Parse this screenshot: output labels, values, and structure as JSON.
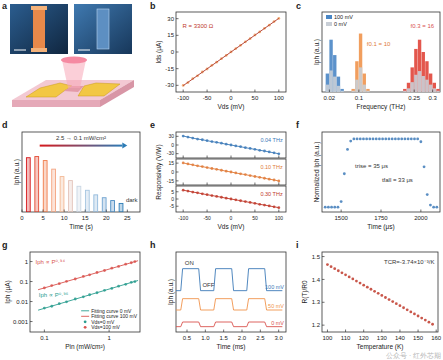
{
  "diagram": {
    "label": "a"
  },
  "watermark": "公众号 · 红外芯期",
  "chart_data": [
    {
      "title": "b",
      "type": "line",
      "x_label": "Vds (mV)",
      "y_label": "Ids (μA)",
      "x": [
        -100,
        -90,
        -80,
        -70,
        -60,
        -50,
        -40,
        -30,
        -20,
        -10,
        0,
        10,
        20,
        30,
        40,
        50,
        60,
        70,
        80,
        90,
        100
      ],
      "xlim": [
        -115,
        115
      ],
      "xticks": [
        -100,
        -50,
        0,
        50,
        100
      ],
      "ylim": [
        -36,
        36
      ],
      "yticks": [
        -30,
        -15,
        0,
        15,
        30
      ],
      "annotations": [
        "R = 3300 Ω"
      ],
      "series": [
        {
          "type": "scatter",
          "color": "#f0a060",
          "marker": "circle",
          "values": [
            -30.1,
            -27.5,
            -24.0,
            -21.4,
            -18.0,
            -15.3,
            -12.0,
            -9.2,
            -6.0,
            -3.1,
            0.1,
            3.1,
            6.0,
            9.2,
            12.0,
            15.3,
            18.1,
            21.3,
            24.1,
            27.4,
            30.2
          ]
        },
        {
          "type": "line",
          "color": "#b03a2e",
          "line_style": "solid",
          "x": [
            -100,
            100
          ],
          "values": [
            -30.3,
            30.3
          ]
        }
      ]
    },
    {
      "title": "c",
      "type": "histogram",
      "x_label": "Frequency (THz)",
      "y_label": "Iph (a.u.)",
      "bins": [
        0,
        0.01,
        0.02,
        0.03,
        0.04,
        0.05,
        0.06,
        0.07,
        0.08,
        0.09,
        0.1,
        0.11,
        0.12,
        0.13,
        0.14,
        0.15,
        0.16,
        0.17,
        0.18,
        0.19,
        0.2,
        0.21,
        0.22,
        0.23,
        0.24,
        0.25,
        0.26,
        0.27,
        0.28,
        0.29,
        0.3,
        0.31,
        0.32
      ],
      "xlim": [
        0,
        0.32
      ],
      "xticks": [
        0.02,
        0.1,
        0.25,
        0.3
      ],
      "ylim": [
        0,
        1.3
      ],
      "tick_labels": "x",
      "legend": "upper left",
      "annotations": [
        "f0.1 = 10",
        "f0.3 = 16"
      ],
      "series": [
        {
          "name": "100 mV",
          "colors": [
            "#4a86c5",
            "#4a86c5",
            "#4a86c5",
            "#4a86c5",
            "#4a86c5",
            "#4a86c5",
            "#4a86c5",
            "#4a86c5",
            "#f0944d",
            "#f0944d",
            "#f0944d",
            "#f0944d",
            "#f0944d",
            "#f0944d",
            "#f0944d",
            "#f0944d",
            "#e0453a",
            "#e0453a",
            "#e0453a",
            "#e0453a",
            "#e0453a",
            "#e0453a",
            "#e0453a",
            "#e0453a",
            "#e0453a",
            "#e0453a",
            "#e0453a",
            "#e0453a",
            "#e0453a",
            "#e0453a",
            "#e0453a",
            "#e0453a"
          ],
          "values": [
            0,
            0.3,
            0.85,
            0.6,
            0.25,
            0.05,
            0,
            0,
            0.05,
            0.5,
            0.95,
            0.3,
            0.05,
            0,
            0,
            0,
            0,
            0,
            0,
            0,
            0,
            0,
            0.05,
            0.15,
            0.4,
            0.7,
            0.85,
            0.65,
            0.5,
            0.3,
            0.15,
            0.05
          ]
        },
        {
          "name": "0 mV",
          "color": "#c8ced6",
          "values": [
            0,
            0.12,
            0.35,
            0.25,
            0.1,
            0.02,
            0,
            0,
            0.02,
            0.2,
            0.4,
            0.12,
            0.02,
            0,
            0,
            0,
            0,
            0,
            0,
            0,
            0,
            0,
            0.02,
            0.06,
            0.16,
            0.28,
            0.34,
            0.26,
            0.2,
            0.12,
            0.06,
            0.02
          ]
        }
      ]
    },
    {
      "title": "d",
      "type": "bar",
      "x_label": "Time (s)",
      "y_label": "Iph (a.u.)",
      "x": [
        1.5,
        3.5,
        5.5,
        7.5,
        9.5,
        11.5,
        13.5,
        15.5,
        17.5,
        19.5,
        21.5,
        23.5
      ],
      "values": [
        0.95,
        0.97,
        0.9,
        0.75,
        0.62,
        0.55,
        0.45,
        0.38,
        0.3,
        0.25,
        0.2,
        0.15
      ],
      "colors": [
        "#d7191c",
        "#e34a33",
        "#f07c4a",
        "#f4a582",
        "#f3b894",
        "#e3c4bb",
        "#c9d6e3",
        "#a6c5e0",
        "#92b9dc",
        "#6fa3d0",
        "#4b8bc2",
        "#2c7bb6"
      ],
      "xlim": [
        0,
        28
      ],
      "xticks": [
        0,
        5,
        10,
        15,
        20,
        25
      ],
      "ylim": [
        0,
        1.4
      ],
      "tick_labels": "x",
      "annotations": [
        "2.5 → 0.1 mW/cm²",
        "dark"
      ]
    },
    {
      "title": "e",
      "type": "line",
      "tick_labels": "y",
      "x": [
        -100,
        -90,
        -80,
        -70,
        -60,
        -50,
        -40,
        -30,
        -20,
        -10,
        0,
        10,
        20,
        30,
        40,
        50,
        60,
        70,
        80,
        90,
        100
      ],
      "xlim": [
        -115,
        115
      ],
      "xticks": [
        -100,
        -50,
        0,
        50,
        100
      ],
      "ylim": [
        -45,
        45
      ],
      "yticks": [
        -30,
        0,
        30
      ],
      "annotations": [
        "0.04 THz"
      ],
      "series": [
        {
          "color": "#3d7ab8",
          "marker": "circle",
          "line_style": "solid",
          "values": [
            31,
            27.5,
            24,
            20.6,
            18.2,
            15,
            11.7,
            9.1,
            6.2,
            2.8,
            0,
            -3.1,
            -5.9,
            -9.2,
            -12,
            -15.1,
            -18.3,
            -20.8,
            -24.1,
            -27.2,
            -30.5
          ]
        }
      ]
    },
    {
      "type": "line",
      "y_label": "Responsivity (V/W)",
      "tick_labels": "y",
      "x": [
        -100,
        -90,
        -80,
        -70,
        -60,
        -50,
        -40,
        -30,
        -20,
        -10,
        0,
        10,
        20,
        30,
        40,
        50,
        60,
        70,
        80,
        90,
        100
      ],
      "xlim": [
        -115,
        115
      ],
      "xticks": [
        -100,
        -50,
        0,
        50,
        100
      ],
      "ylim": [
        -22,
        22
      ],
      "yticks": [
        -15,
        0,
        15
      ],
      "annotations": [
        "0.10 THz"
      ],
      "series": [
        {
          "color": "#e07b39",
          "marker": "circle",
          "line_style": "solid",
          "values": [
            15.4,
            13.6,
            12.1,
            10.4,
            9.1,
            7.5,
            5.9,
            4.6,
            3.0,
            1.4,
            0,
            -1.6,
            -3.1,
            -4.4,
            -6.0,
            -7.6,
            -9.0,
            -10.6,
            -12.1,
            -13.5,
            -15.2
          ]
        }
      ]
    },
    {
      "type": "line",
      "x_label": "Vds (mV)",
      "x": [
        -100,
        -90,
        -80,
        -70,
        -60,
        -50,
        -40,
        -30,
        -20,
        -10,
        0,
        10,
        20,
        30,
        40,
        50,
        60,
        70,
        80,
        90,
        100
      ],
      "xlim": [
        -115,
        115
      ],
      "xticks": [
        -100,
        -50,
        0,
        50,
        100
      ],
      "ylim": [
        -9,
        9
      ],
      "yticks": [
        -5,
        0,
        5
      ],
      "annotations": [
        "0.30 THz"
      ],
      "series": [
        {
          "color": "#c0392b",
          "marker": "circle",
          "line_style": "solid",
          "values": [
            6.1,
            5.5,
            4.8,
            4.3,
            3.6,
            3.0,
            2.4,
            1.8,
            1.2,
            0.6,
            0,
            -0.6,
            -1.2,
            -1.8,
            -2.4,
            -3.0,
            -3.7,
            -4.2,
            -4.8,
            -5.4,
            -6.0
          ]
        }
      ]
    },
    {
      "title": "f",
      "type": "line",
      "x_label": "Time (μs)",
      "y_label": "Normalized Iph (a.u.)",
      "x": [
        1400,
        1420,
        1440,
        1460,
        1480,
        1500,
        1520,
        1540,
        1560,
        1580,
        1600,
        1620,
        1640,
        1660,
        1680,
        1700,
        1720,
        1740,
        1760,
        1780,
        1800,
        1820,
        1840,
        1860,
        1880,
        1900,
        1920,
        1940,
        1960,
        1980,
        2000,
        2020,
        2040,
        2060,
        2080,
        2100
      ],
      "xlim": [
        1380,
        2120
      ],
      "xticks": [
        1500,
        1750,
        2000
      ],
      "ylim": [
        -0.05,
        1.1
      ],
      "tick_labels": "x",
      "annotations": [
        "trise = 35 μs",
        "tfall = 33 μs"
      ],
      "series": [
        {
          "type": "scatter",
          "color": "#3d7ab8",
          "marker": "circle",
          "values": [
            0.02,
            0.02,
            0.02,
            0.02,
            0.02,
            0.1,
            0.5,
            0.85,
            0.97,
            1,
            1,
            1,
            1,
            1,
            1,
            1,
            1,
            1,
            1,
            1,
            1,
            1,
            1,
            1,
            1,
            1,
            1,
            1,
            1,
            1,
            0.96,
            0.6,
            0.2,
            0.05,
            0.02,
            0.02
          ]
        }
      ]
    },
    {
      "title": "g",
      "type": "line",
      "log": true,
      "x_label": "Pin (mW/cm²)",
      "y_label": "Iph (μA)",
      "xlim": [
        0.06,
        3
      ],
      "xticks": [
        0.1,
        1
      ],
      "ylim": [
        0.0003,
        3
      ],
      "yticks": [
        0.001,
        0.01,
        0.1,
        1
      ],
      "legend": "lower right",
      "annotations": [
        "Iph ∝ P⁰·⁹⁴",
        "Iph ∝ P⁰·⁹⁶"
      ],
      "series": [
        {
          "name": "Fitting curve 0 mV",
          "type": "line",
          "color": "#2a9d8f",
          "line_style": "solid",
          "x": [
            0.08,
            2.8
          ],
          "values": [
            0.0037,
            0.113
          ]
        },
        {
          "name": "Fitting curve 100 mV",
          "type": "line",
          "color": "#d9534f",
          "line_style": "solid",
          "x": [
            0.08,
            2.8
          ],
          "values": [
            0.039,
            1.1
          ]
        },
        {
          "name": "Vds=0 mV",
          "type": "scatter",
          "color": "#2a9d8f",
          "marker": "circle",
          "x": [
            0.1,
            0.13,
            0.17,
            0.22,
            0.3,
            0.4,
            0.5,
            0.65,
            0.85,
            1.1,
            1.4,
            1.8,
            2.2,
            2.5
          ],
          "values": [
            0.0047,
            0.0058,
            0.0078,
            0.0097,
            0.0134,
            0.0172,
            0.0218,
            0.0275,
            0.0362,
            0.0455,
            0.0585,
            0.073,
            0.091,
            0.1
          ]
        },
        {
          "name": "Vds=100 mV",
          "type": "scatter",
          "color": "#d9534f",
          "marker": "circle",
          "x": [
            0.1,
            0.13,
            0.17,
            0.22,
            0.3,
            0.4,
            0.5,
            0.65,
            0.85,
            1.1,
            1.4,
            1.8,
            2.2,
            2.5
          ],
          "values": [
            0.048,
            0.063,
            0.078,
            0.102,
            0.134,
            0.18,
            0.216,
            0.283,
            0.356,
            0.465,
            0.57,
            0.735,
            0.87,
            1.0
          ]
        }
      ]
    },
    {
      "title": "h",
      "type": "line",
      "x_label": "Time (ms)",
      "y_label": "Iph (a.u.)",
      "x": [
        0.2,
        0.33,
        0.38,
        0.82,
        0.87,
        1.23,
        1.28,
        1.72,
        1.77,
        2.13,
        2.18,
        2.62,
        2.67,
        3.1
      ],
      "xlim": [
        0.2,
        3.2
      ],
      "xticks": [
        0.5,
        {
          "value": 1,
          "label": "1.0"
        },
        1.5,
        {
          "value": 2,
          "label": "2.0"
        },
        2.5,
        {
          "value": 3,
          "label": "3.0"
        }
      ],
      "ylim": [
        0,
        1.2
      ],
      "tick_labels": "x",
      "legend": "right",
      "annotations": [
        "ON",
        "OFF"
      ],
      "series": [
        {
          "name": "100 mV",
          "color": "#3d7ab8",
          "line_style": "solid",
          "values": [
            0.62,
            0.62,
            0.95,
            0.95,
            0.62,
            0.62,
            0.95,
            0.95,
            0.62,
            0.62,
            0.95,
            0.95,
            0.62,
            0.62
          ]
        },
        {
          "name": "50 mV",
          "color": "#f0944d",
          "line_style": "solid",
          "values": [
            0.33,
            0.33,
            0.5,
            0.5,
            0.33,
            0.33,
            0.5,
            0.5,
            0.33,
            0.33,
            0.5,
            0.5,
            0.33,
            0.33
          ]
        },
        {
          "name": "0 mV",
          "color": "#d9534f",
          "line_style": "solid",
          "values": [
            0.08,
            0.08,
            0.15,
            0.15,
            0.08,
            0.08,
            0.15,
            0.15,
            0.08,
            0.08,
            0.15,
            0.15,
            0.08,
            0.08
          ]
        }
      ]
    },
    {
      "title": "i",
      "type": "line",
      "x_label": "Temperature (K)",
      "y_label": "R(T)/R0",
      "x": [
        100,
        102,
        104,
        106,
        108,
        110,
        112,
        114,
        116,
        118,
        120,
        122,
        124,
        126,
        128,
        130,
        132,
        134,
        136,
        138,
        140,
        142,
        144,
        146,
        148,
        150,
        152,
        154,
        156,
        158
      ],
      "xlim": [
        97,
        161
      ],
      "xticks": [
        100,
        110,
        120,
        130,
        140,
        150,
        160
      ],
      "ylim": [
        1.17,
        1.52
      ],
      "yticks": [
        1.2,
        1.3,
        1.4,
        1.5
      ],
      "annotations": [
        "TCR=-3.74×10⁻³/K"
      ],
      "series": [
        {
          "type": "scatter",
          "color": "#c0392b",
          "marker": "circle",
          "values": [
            1.465,
            1.456,
            1.447,
            1.438,
            1.429,
            1.42,
            1.411,
            1.402,
            1.393,
            1.384,
            1.375,
            1.366,
            1.357,
            1.348,
            1.339,
            1.33,
            1.321,
            1.312,
            1.303,
            1.294,
            1.285,
            1.276,
            1.267,
            1.258,
            1.249,
            1.24,
            1.231,
            1.222,
            1.213,
            1.204
          ]
        }
      ]
    }
  ]
}
